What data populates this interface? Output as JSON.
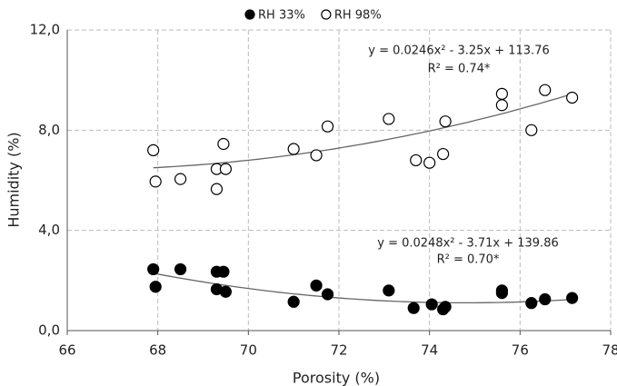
{
  "chart_data": {
    "type": "scatter",
    "xlabel": "Porosity (%)",
    "ylabel": "Humidity (%)",
    "xlim": [
      66,
      78
    ],
    "xticks": [
      66,
      68,
      70,
      72,
      74,
      76,
      78
    ],
    "ylim": [
      0,
      12
    ],
    "yticks": [
      {
        "value": 0,
        "label": "0,0"
      },
      {
        "value": 4,
        "label": "4,0"
      },
      {
        "value": 8,
        "label": "8,0"
      },
      {
        "value": 12,
        "label": "12,0"
      }
    ],
    "grid": true,
    "legend": "top",
    "series": [
      {
        "name": "RH 33%",
        "color": "#000000",
        "fill": "#000000",
        "x": [
          67.9,
          67.95,
          68.5,
          69.3,
          69.45,
          69.3,
          69.5,
          71.0,
          71.5,
          71.75,
          73.1,
          73.65,
          74.05,
          74.3,
          74.35,
          75.6,
          75.6,
          76.25,
          76.55,
          77.15
        ],
        "values": [
          2.45,
          1.75,
          2.45,
          2.35,
          2.35,
          1.65,
          1.55,
          1.15,
          1.8,
          1.45,
          1.6,
          0.9,
          1.05,
          0.85,
          0.95,
          1.6,
          1.5,
          1.1,
          1.25,
          1.3
        ],
        "trendline": {
          "equation": "y = 0.0248x² - 3.71x + 139.86",
          "coefficients": [
            0.0248,
            -3.71,
            139.86
          ],
          "r2": "R² = 0.70*"
        }
      },
      {
        "name": "RH 98%",
        "color": "#000000",
        "fill": "#ffffff",
        "x": [
          67.9,
          67.95,
          68.5,
          69.3,
          69.3,
          69.45,
          69.5,
          71.0,
          71.5,
          71.75,
          73.1,
          73.7,
          74.0,
          74.3,
          74.35,
          75.6,
          75.6,
          76.25,
          76.55,
          77.15
        ],
        "values": [
          7.2,
          5.95,
          6.05,
          6.45,
          5.65,
          7.45,
          6.45,
          7.25,
          7.0,
          8.15,
          8.45,
          6.8,
          6.7,
          7.05,
          8.35,
          9.45,
          9.0,
          8.0,
          9.6,
          9.3
        ],
        "trendline": {
          "equation": "y = 0.0246x² - 3.25x + 113.76",
          "coefficients": [
            0.0246,
            -3.25,
            113.76
          ],
          "r2": "R² = 0.74*"
        }
      }
    ]
  }
}
